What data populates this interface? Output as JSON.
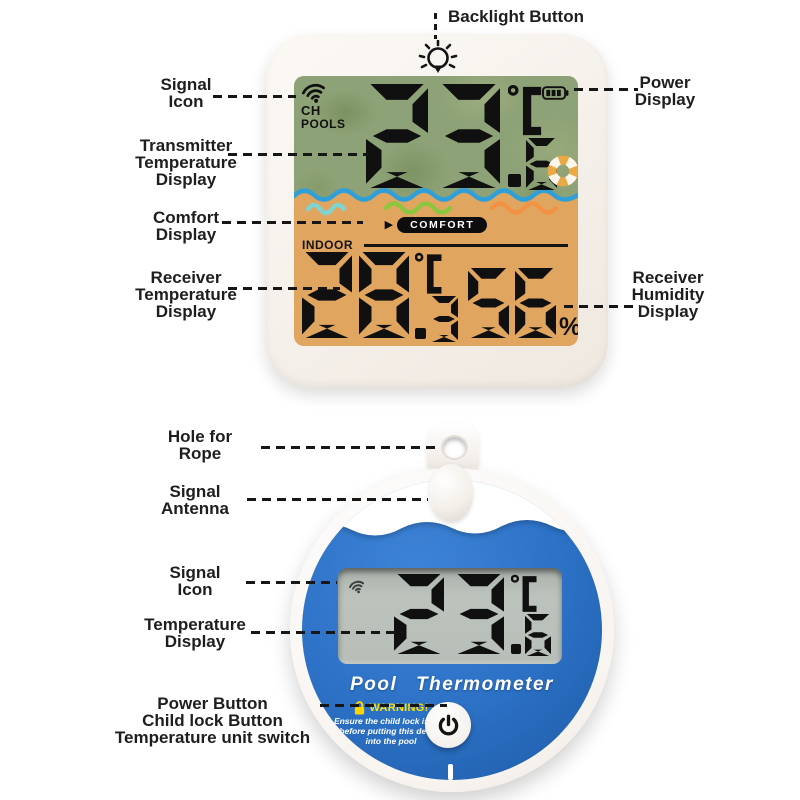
{
  "annotations": {
    "receiver": [
      {
        "id": "backlight-button",
        "text": "Backlight Button"
      },
      {
        "id": "signal-icon",
        "text": "Signal\nIcon"
      },
      {
        "id": "power-display",
        "text": "Power\nDisplay"
      },
      {
        "id": "transmitter-temperature-display",
        "text": "Transmitter\nTemperature\nDisplay"
      },
      {
        "id": "comfort-display",
        "text": "Comfort\nDisplay"
      },
      {
        "id": "receiver-temperature-display",
        "text": "Receiver\nTemperature\nDisplay"
      },
      {
        "id": "receiver-humidity-display",
        "text": "Receiver\nHumidity\nDisplay"
      }
    ],
    "pool": [
      {
        "id": "hole-for-rope",
        "text": "Hole for\nRope"
      },
      {
        "id": "signal-antenna",
        "text": "Signal\nAntenna"
      },
      {
        "id": "signal-icon",
        "text": "Signal\nIcon"
      },
      {
        "id": "temperature-display",
        "text": "Temperature\nDisplay"
      },
      {
        "id": "buttons",
        "text": "Power Button\nChild lock Button\nTemperature unit switch"
      }
    ]
  },
  "receiver": {
    "channel_label": "CH",
    "channel_name": "POOLS",
    "transmitter_temp": "23.6",
    "temp_unit": "°C",
    "comfort_arrow": "▶",
    "comfort_label": "COMFORT",
    "indoor_label": "INDOOR",
    "indoor_temp": "28.3",
    "humidity": "56",
    "humidity_unit": "%",
    "icons": {
      "signal": "wifi-signal-icon",
      "battery": "battery-level-icon",
      "backlight": "light-bulb-icon",
      "float_ring": "life-ring-icon"
    }
  },
  "pool_thermometer": {
    "temp": "23.6",
    "temp_unit": "°C",
    "name": "Pool Thermometer",
    "warning_title": "WARNING!",
    "warning_text": "Ensure the child lock is 'ON'\nbefore putting this device\ninto the pool",
    "icons": {
      "signal": "wifi-signal-icon",
      "warning_lock": "lock-icon",
      "power": "power-icon"
    }
  },
  "colors": {
    "pool_blue": "#2b70c4",
    "display_green": "#8ea277",
    "display_orange": "#e0a55f",
    "wave_blue": "#2f9fd8",
    "squiggle_teal": "#7fd4cf",
    "squiggle_green": "#8cc63f",
    "squiggle_orange": "#f29344",
    "warning_yellow": "#ffe000",
    "digit_black": "#101010"
  }
}
